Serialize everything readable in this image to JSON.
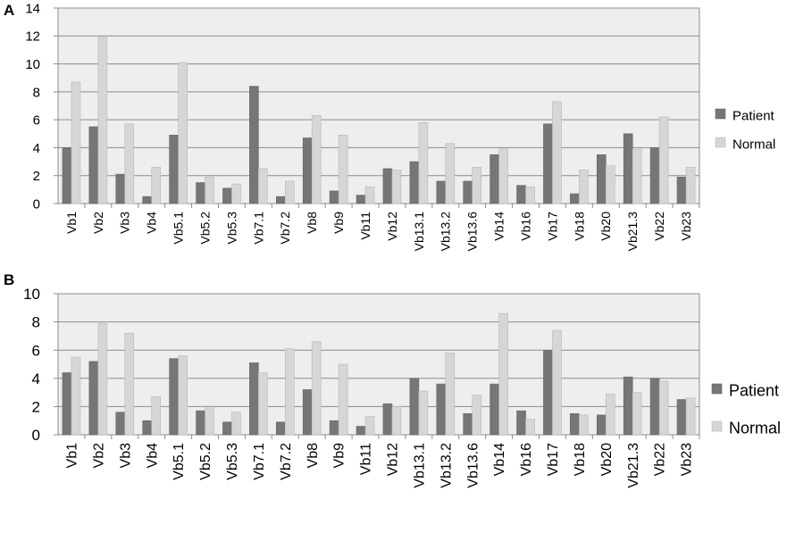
{
  "colors": {
    "patient": "#767676",
    "normal": "#d6d6d6",
    "plot_bg": "#eeeeee",
    "grid": "#8c8c8c",
    "axis": "#8c8c8c"
  },
  "chart_data": [
    {
      "type": "bar",
      "panel_label": "A",
      "categories": [
        "Vb1",
        "Vb2",
        "Vb3",
        "Vb4",
        "Vb5.1",
        "Vb5.2",
        "Vb5.3",
        "Vb7.1",
        "Vb7.2",
        "Vb8",
        "Vb9",
        "Vb11",
        "Vb12",
        "Vb13.1",
        "Vb13.2",
        "Vb13.6",
        "Vb14",
        "Vb16",
        "Vb17",
        "Vb18",
        "Vb20",
        "Vb21.3",
        "Vb22",
        "Vb23"
      ],
      "series": [
        {
          "name": "Patient",
          "values": [
            4.0,
            5.5,
            2.1,
            0.5,
            4.9,
            1.5,
            1.1,
            8.4,
            0.5,
            4.7,
            0.9,
            0.6,
            2.5,
            3.0,
            1.6,
            1.6,
            3.5,
            1.3,
            5.7,
            0.7,
            3.5,
            5.0,
            4.0,
            1.9
          ]
        },
        {
          "name": "Normal",
          "values": [
            8.7,
            11.9,
            5.7,
            2.6,
            10.1,
            1.9,
            1.4,
            2.5,
            1.6,
            6.3,
            4.9,
            1.2,
            2.4,
            5.8,
            4.3,
            2.6,
            3.9,
            1.2,
            7.3,
            2.4,
            2.7,
            3.9,
            6.2,
            2.6
          ]
        }
      ],
      "ylim": [
        0,
        14
      ],
      "yticks": [
        "0",
        "2",
        "4",
        "6",
        "8",
        "10",
        "12",
        "14"
      ],
      "grid": true,
      "legend_position": "right"
    },
    {
      "type": "bar",
      "panel_label": "B",
      "categories": [
        "Vb1",
        "Vb2",
        "Vb3",
        "Vb4",
        "Vb5.1",
        "Vb5.2",
        "Vb5.3",
        "Vb7.1",
        "Vb7.2",
        "Vb8",
        "Vb9",
        "Vb11",
        "Vb12",
        "Vb13.1",
        "Vb13.2",
        "Vb13.6",
        "Vb14",
        "Vb16",
        "Vb17",
        "Vb18",
        "Vb20",
        "Vb21.3",
        "Vb22",
        "Vb23"
      ],
      "series": [
        {
          "name": "Patient",
          "values": [
            4.4,
            5.2,
            1.6,
            1.0,
            5.4,
            1.7,
            0.9,
            5.1,
            0.9,
            3.2,
            1.0,
            0.6,
            2.2,
            4.0,
            3.6,
            1.5,
            3.6,
            1.7,
            6.0,
            1.5,
            1.4,
            4.1,
            4.0,
            2.5
          ]
        },
        {
          "name": "Normal",
          "values": [
            5.5,
            7.9,
            7.2,
            2.7,
            5.6,
            1.9,
            1.6,
            4.4,
            6.1,
            6.6,
            5.0,
            1.3,
            2.0,
            3.1,
            5.8,
            2.8,
            8.6,
            1.1,
            7.4,
            1.4,
            2.9,
            3.0,
            3.8,
            2.6
          ]
        }
      ],
      "ylim": [
        0,
        10
      ],
      "yticks": [
        "0",
        "2",
        "4",
        "6",
        "8",
        "10"
      ],
      "grid": true,
      "legend_position": "right"
    }
  ]
}
